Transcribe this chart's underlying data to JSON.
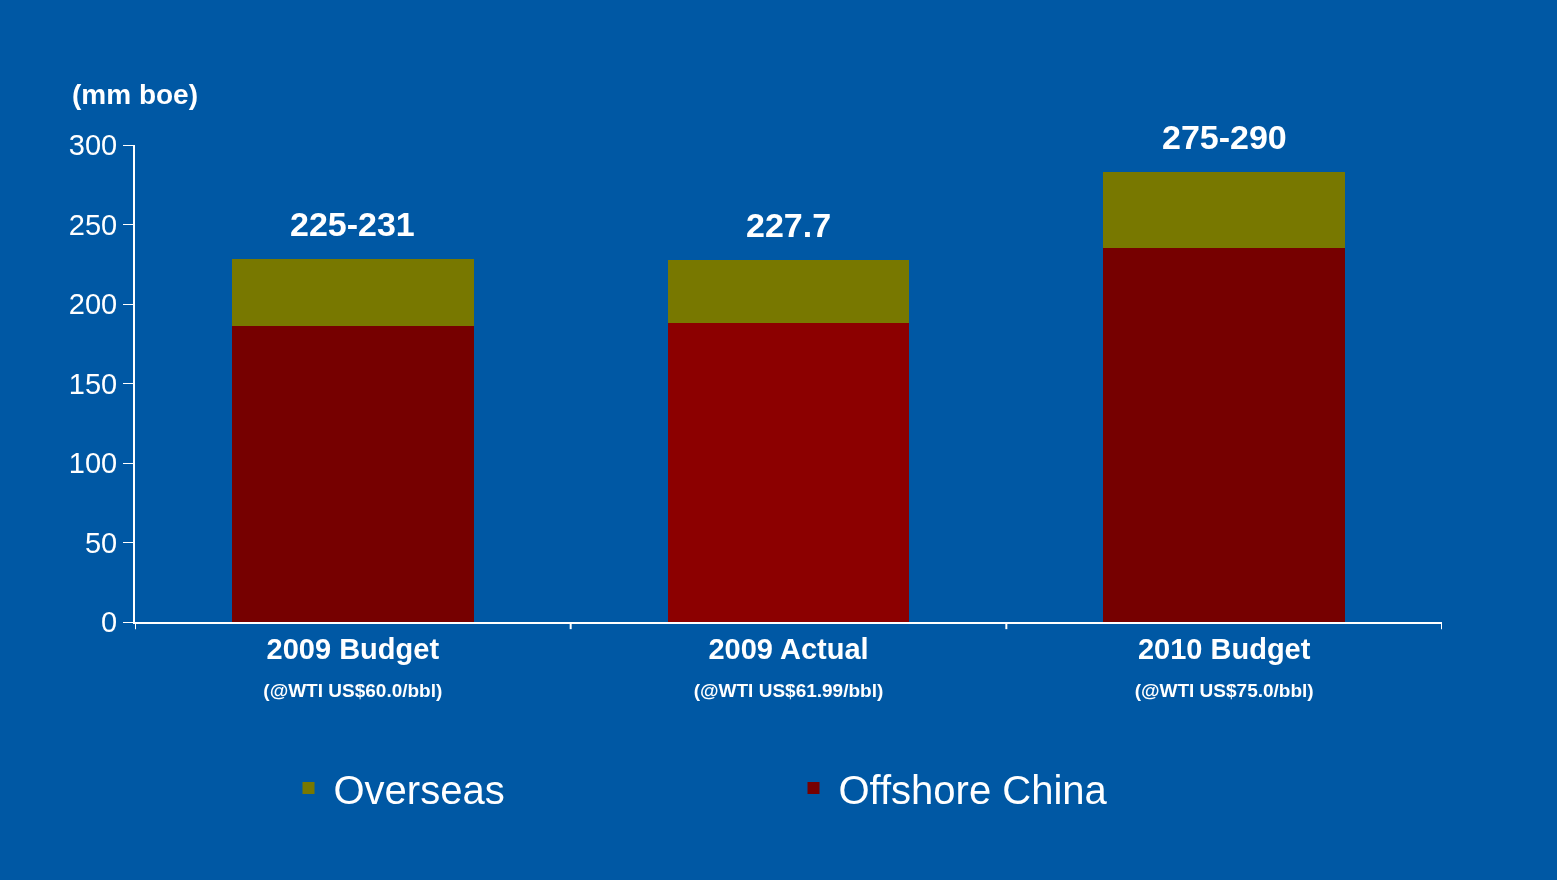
{
  "chart_data": {
    "type": "bar",
    "stacked": true,
    "categories": [
      "2009 Budget\n(@WTI US$60.0/bbl)",
      "2009 Actual\n(@WTI US$61.99/bbl)",
      "2010 Budget\n(@WTI US$75.0/bbl)"
    ],
    "series": [
      {
        "name": "Offshore China",
        "color": "#760000",
        "colors": [
          "#760000",
          "#8c0000",
          "#760000"
        ],
        "values": [
          186,
          188,
          235
        ]
      },
      {
        "name": "Overseas",
        "color": "#787800",
        "values": [
          42,
          39.7,
          48
        ]
      }
    ],
    "totals": [
      "225-231",
      "227.7",
      "275-290"
    ],
    "ylabel": "(mm boe)",
    "ylim": [
      0,
      300
    ],
    "yticks": [
      0,
      50,
      100,
      150,
      200,
      250,
      300
    ],
    "grid": false,
    "legend": "bottom"
  }
}
